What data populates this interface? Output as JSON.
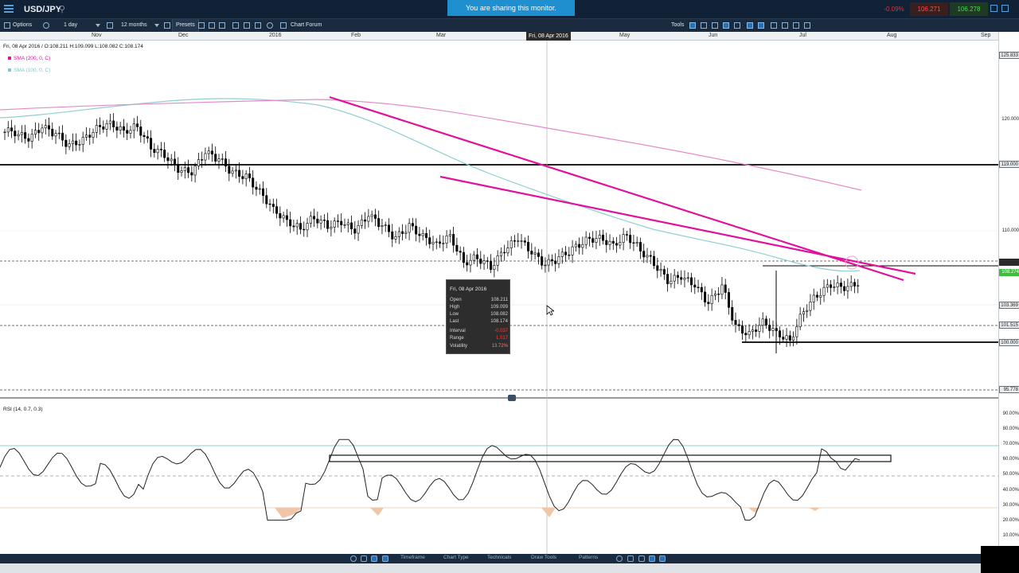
{
  "window": {
    "symbol": "USD/JPY",
    "share_banner": "You are sharing this monitor."
  },
  "quote": {
    "change": "-0.09%",
    "sell": "106.271",
    "buy": "106.278"
  },
  "toolbar": {
    "options": "Options",
    "interval": "1 day",
    "range": "12 months",
    "presets": "Presets",
    "chart_forum": "Chart Forum",
    "tools": "Tools"
  },
  "timeline": {
    "labels": [
      "Nov",
      "Dec",
      "2016",
      "Feb",
      "Mar",
      "May",
      "Jun",
      "Jul",
      "Aug",
      "Sep"
    ],
    "selected": "Fri, 08 Apr 2016"
  },
  "info": {
    "ohlc": "Fri, 08 Apr 2016 / O:108.211 H:109.099 L:108.082 C:108.174",
    "sma_200": "SMA (200, 0, C)",
    "sma_100": "SMA (100, 0, C)"
  },
  "price_axis": {
    "labels": [
      "125.833",
      "120.000",
      "119.000",
      "110.000",
      "108.274",
      "103.369",
      "101.515",
      "100.000",
      "95.778"
    ]
  },
  "rsi": {
    "label": "RSI (14, 0.7, 0.3)",
    "axis": [
      "90.00%",
      "80.00%",
      "70.00%",
      "60.00%",
      "50.00%",
      "40.00%",
      "30.00%",
      "20.00%",
      "10.00%"
    ]
  },
  "tooltip": {
    "date": "Fri, 08 Apr 2016",
    "rows": [
      {
        "k": "Open",
        "v": "108.211"
      },
      {
        "k": "High",
        "v": "109.099"
      },
      {
        "k": "Low",
        "v": "108.082"
      },
      {
        "k": "Last",
        "v": "108.174"
      },
      {
        "k": "Interval",
        "v": "-0.037"
      },
      {
        "k": "Range",
        "v": "1.017"
      },
      {
        "k": "Volatility",
        "v": "13.72%"
      }
    ]
  },
  "bottom": {
    "timeframe": "Timeframe",
    "chart_type": "Chart Type",
    "technicals": "Technicals",
    "draw_tools": "Draw Tools",
    "patterns": "Patterns"
  },
  "colors": {
    "trendline": "#e0119c",
    "sma200": "#e58bc8",
    "sma100": "#8fd0d0",
    "candle": "#000000",
    "background": "#ffffff"
  },
  "chart_data": {
    "type": "candlestick",
    "symbol": "USD/JPY",
    "interval": "1 day",
    "overlays": [
      "SMA (200, 0, C)",
      "SMA (100, 0, C)"
    ],
    "indicator": "RSI (14, 0.7, 0.3)",
    "closes_approx": [
      122.5,
      121.8,
      123.0,
      122.2,
      120.9,
      121.5,
      122.8,
      123.4,
      122.6,
      123.2,
      121.0,
      120.2,
      118.6,
      118.2,
      120.3,
      119.5,
      118.0,
      117.6,
      116.0,
      114.2,
      113.0,
      112.2,
      113.5,
      112.6,
      113.0,
      112.0,
      113.6,
      112.4,
      111.0,
      112.3,
      111.2,
      110.4,
      111.4,
      108.6,
      109.2,
      108.2,
      110.0,
      111.2,
      109.6,
      108.2,
      108.9,
      109.8,
      110.8,
      111.1,
      110.4,
      111.5,
      110.0,
      108.6,
      106.7,
      107.1,
      106.1,
      104.1,
      105.9,
      101.5,
      100.7,
      102.1,
      101.0,
      100.2,
      103.5,
      105.2,
      106.3,
      105.9,
      106.3
    ]
  }
}
